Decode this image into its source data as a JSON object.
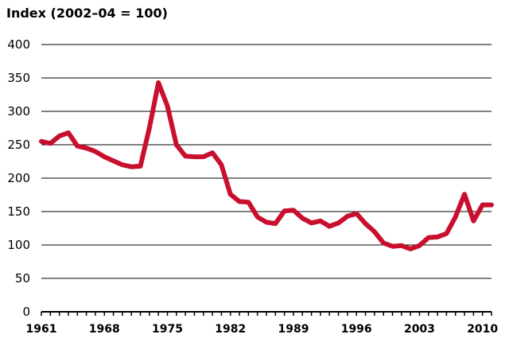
{
  "chart_data": {
    "type": "line",
    "title": "Index (2002–04 = 100)",
    "xlabel": "",
    "ylabel": "",
    "xlim": [
      1961,
      2011
    ],
    "ylim": [
      0,
      400
    ],
    "yticks": [
      0,
      50,
      100,
      150,
      200,
      250,
      300,
      350,
      400
    ],
    "xticks": [
      1961,
      1968,
      1975,
      1982,
      1989,
      1996,
      2003,
      2010
    ],
    "grid": true,
    "legend": "none",
    "colors": {
      "line": "#c8102e",
      "grid": "#000000"
    },
    "x": [
      1961,
      1962,
      1963,
      1964,
      1965,
      1966,
      1967,
      1968,
      1969,
      1970,
      1971,
      1972,
      1973,
      1974,
      1975,
      1976,
      1977,
      1978,
      1979,
      1980,
      1981,
      1982,
      1983,
      1984,
      1985,
      1986,
      1987,
      1988,
      1989,
      1990,
      1991,
      1992,
      1993,
      1994,
      1995,
      1996,
      1997,
      1998,
      1999,
      2000,
      2001,
      2002,
      2003,
      2004,
      2005,
      2006,
      2007,
      2008,
      2009,
      2010,
      2011
    ],
    "series": [
      {
        "values": [
          255,
          252,
          263,
          268,
          248,
          245,
          240,
          232,
          226,
          220,
          217,
          218,
          275,
          343,
          308,
          250,
          233,
          232,
          232,
          238,
          220,
          176,
          165,
          164,
          142,
          134,
          132,
          151,
          152,
          140,
          133,
          136,
          128,
          133,
          143,
          147,
          132,
          120,
          103,
          98,
          99,
          94,
          99,
          111,
          112,
          117,
          142,
          176,
          136,
          160,
          160
        ]
      }
    ]
  }
}
